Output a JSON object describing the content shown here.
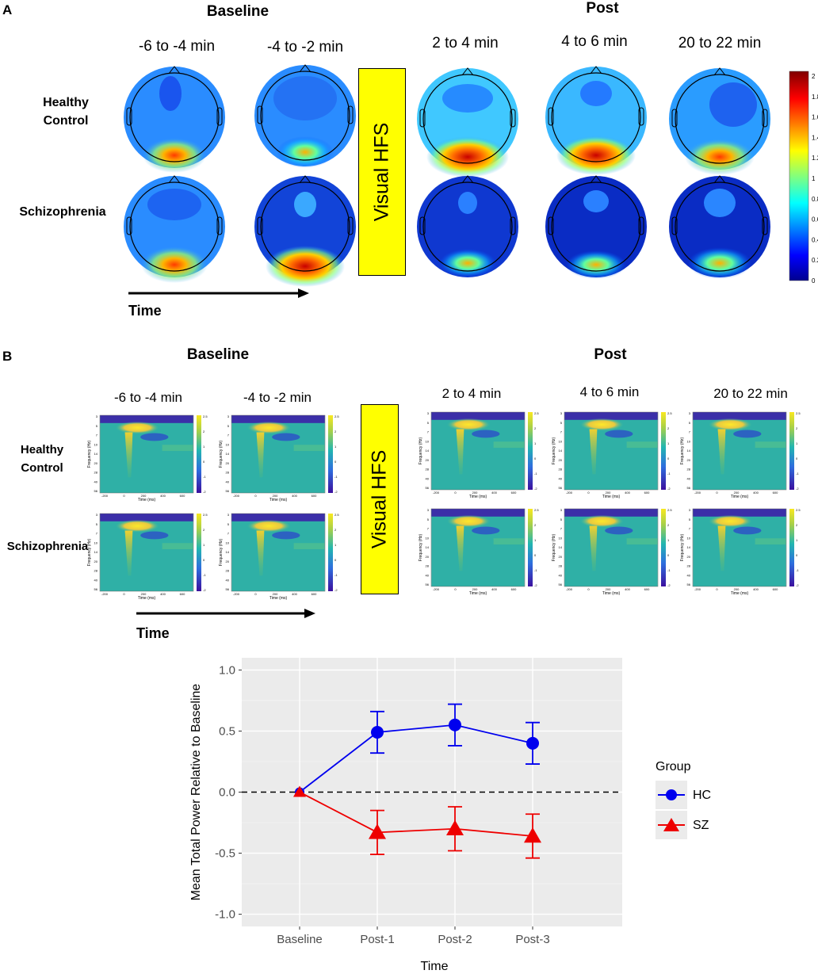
{
  "panel_a": {
    "letter": "A",
    "baseline_header": "Baseline",
    "post_header": "Post",
    "columns": [
      "-6 to -4 min",
      "-4 to -2 min",
      "2 to 4 min",
      "4 to 6 min",
      "20 to 22 min"
    ],
    "rows": [
      "Healthy Control",
      "Schizophrenia"
    ],
    "intervention": "Visual HFS",
    "time_label": "Time",
    "colorbar_ticks": [
      "2",
      "1.8",
      "1.6",
      "1.4",
      "1.2",
      "1",
      "0.8",
      "0.6",
      "0.4",
      "0.2",
      "0"
    ]
  },
  "panel_b": {
    "letter": "B",
    "baseline_header": "Baseline",
    "post_header": "Post",
    "columns": [
      "-6 to -4 min",
      "-4 to -2 min",
      "2 to 4 min",
      "4 to 6 min",
      "20 to 22 min"
    ],
    "rows": [
      "Healthy Control",
      "Schizophrenia"
    ],
    "intervention": "Visual HFS",
    "time_label": "Time",
    "tf_ylabel": "Frequency (Hz)",
    "tf_xlabel": "Time (ms)",
    "tf_xticks": [
      "-200",
      "0",
      "200",
      "400",
      "600"
    ],
    "tf_yticks": [
      "3",
      "5",
      "7",
      "10",
      "14",
      "20",
      "28",
      "40",
      "56"
    ],
    "tf_cbar_ticks": [
      "2.5",
      "2",
      "1",
      "0",
      "-1",
      "-2"
    ]
  },
  "chart_data": {
    "type": "line",
    "title": "",
    "xlabel": "Time",
    "ylabel": "Mean Total Power Relative to Baseline",
    "categories": [
      "Baseline",
      "Post-1",
      "Post-2",
      "Post-3"
    ],
    "ylim": [
      -1.1,
      1.1
    ],
    "yticks": [
      -1.0,
      -0.5,
      0.0,
      0.5,
      1.0
    ],
    "ytick_labels": [
      "-1.0",
      "-0.5",
      "0.0",
      "0.5",
      "1.0"
    ],
    "reference_line": 0.0,
    "legend_title": "Group",
    "legend_position": "right",
    "series": [
      {
        "name": "HC",
        "color": "#0000ee",
        "marker": "circle",
        "values": [
          0.0,
          0.49,
          0.55,
          0.4
        ],
        "err_low": [
          0.0,
          0.32,
          0.38,
          0.23
        ],
        "err_high": [
          0.0,
          0.66,
          0.72,
          0.57
        ]
      },
      {
        "name": "SZ",
        "color": "#ee0000",
        "marker": "triangle",
        "values": [
          0.0,
          -0.33,
          -0.3,
          -0.36
        ],
        "err_low": [
          0.0,
          -0.51,
          -0.48,
          -0.54
        ],
        "err_high": [
          0.0,
          -0.15,
          -0.12,
          -0.18
        ]
      }
    ]
  }
}
